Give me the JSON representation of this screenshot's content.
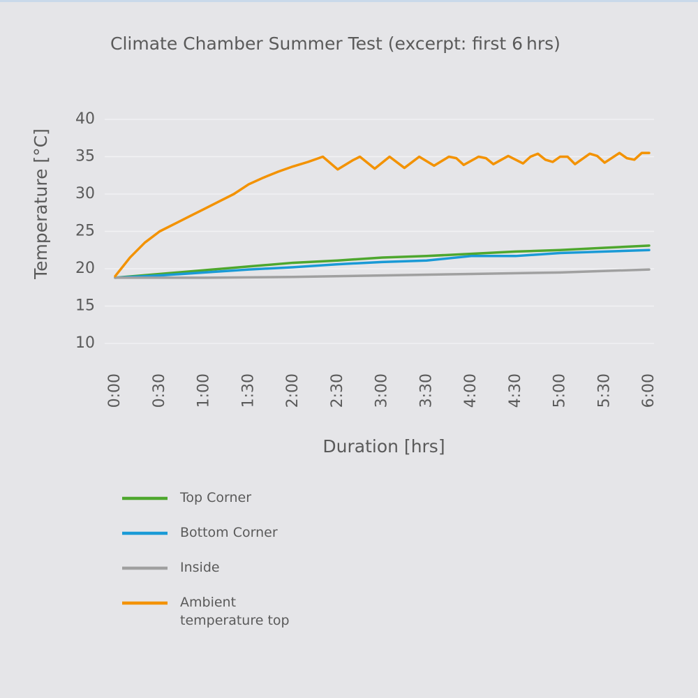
{
  "chart_data": {
    "type": "line",
    "title": "Climate Chamber Summer Test (excerpt: first 6 hrs)",
    "x_label": "Duration [hrs]",
    "y_label": "Temperature [°C]",
    "xlim": [
      0,
      360
    ],
    "xticks": [
      {
        "value": 0,
        "label": "0:00"
      },
      {
        "value": 30,
        "label": "0:30"
      },
      {
        "value": 60,
        "label": "1:00"
      },
      {
        "value": 90,
        "label": "1:30"
      },
      {
        "value": 120,
        "label": "2:00"
      },
      {
        "value": 150,
        "label": "2:30"
      },
      {
        "value": 180,
        "label": "3:00"
      },
      {
        "value": 210,
        "label": "3:30"
      },
      {
        "value": 240,
        "label": "4:00"
      },
      {
        "value": 270,
        "label": "4:30"
      },
      {
        "value": 300,
        "label": "5:00"
      },
      {
        "value": 330,
        "label": "5:30"
      },
      {
        "value": 360,
        "label": "6:00"
      }
    ],
    "ylim": [
      10,
      40
    ],
    "yticks": [
      10,
      15,
      20,
      25,
      30,
      35,
      40
    ],
    "grid": true,
    "series": [
      {
        "name": "Top Corner",
        "color": "#4ea72e",
        "x": [
          0,
          30,
          60,
          90,
          120,
          150,
          180,
          210,
          240,
          270,
          300,
          330,
          360
        ],
        "values": [
          18.8,
          19.3,
          19.8,
          20.3,
          20.8,
          21.1,
          21.5,
          21.7,
          22,
          22.3,
          22.5,
          22.8,
          23.1
        ]
      },
      {
        "name": "Bottom Corner",
        "color": "#1a9ad6",
        "x": [
          0,
          30,
          60,
          90,
          120,
          150,
          180,
          210,
          240,
          270,
          300,
          330,
          360
        ],
        "values": [
          18.8,
          19.1,
          19.5,
          19.9,
          20.2,
          20.6,
          20.9,
          21.1,
          21.7,
          21.7,
          22.1,
          22.3,
          22.5
        ]
      },
      {
        "name": "Inside",
        "color": "#a0a0a0",
        "x": [
          0,
          60,
          120,
          180,
          240,
          300,
          360
        ],
        "values": [
          18.8,
          18.8,
          18.9,
          19.1,
          19.3,
          19.5,
          19.9
        ]
      },
      {
        "name": "Ambient temperature top",
        "color": "#f39200",
        "x": [
          0,
          10,
          20,
          30,
          40,
          50,
          60,
          70,
          80,
          90,
          100,
          110,
          120,
          130,
          140,
          150,
          160,
          165,
          175,
          185,
          195,
          205,
          215,
          225,
          230,
          235,
          245,
          250,
          255,
          265,
          275,
          280,
          285,
          290,
          295,
          300,
          305,
          310,
          320,
          325,
          330,
          340,
          345,
          350,
          355,
          360
        ],
        "values": [
          19,
          21.5,
          23.5,
          25,
          26,
          27,
          28,
          29,
          30,
          31.3,
          32.2,
          33,
          33.7,
          34.3,
          35,
          33.3,
          34.5,
          35,
          33.4,
          35,
          33.5,
          35,
          33.8,
          35,
          34.8,
          33.9,
          35,
          34.8,
          34,
          35.1,
          34.1,
          35,
          35.4,
          34.6,
          34.3,
          35,
          35,
          34,
          35.4,
          35.1,
          34.2,
          35.5,
          34.8,
          34.6,
          35.5,
          35.5
        ]
      }
    ]
  }
}
